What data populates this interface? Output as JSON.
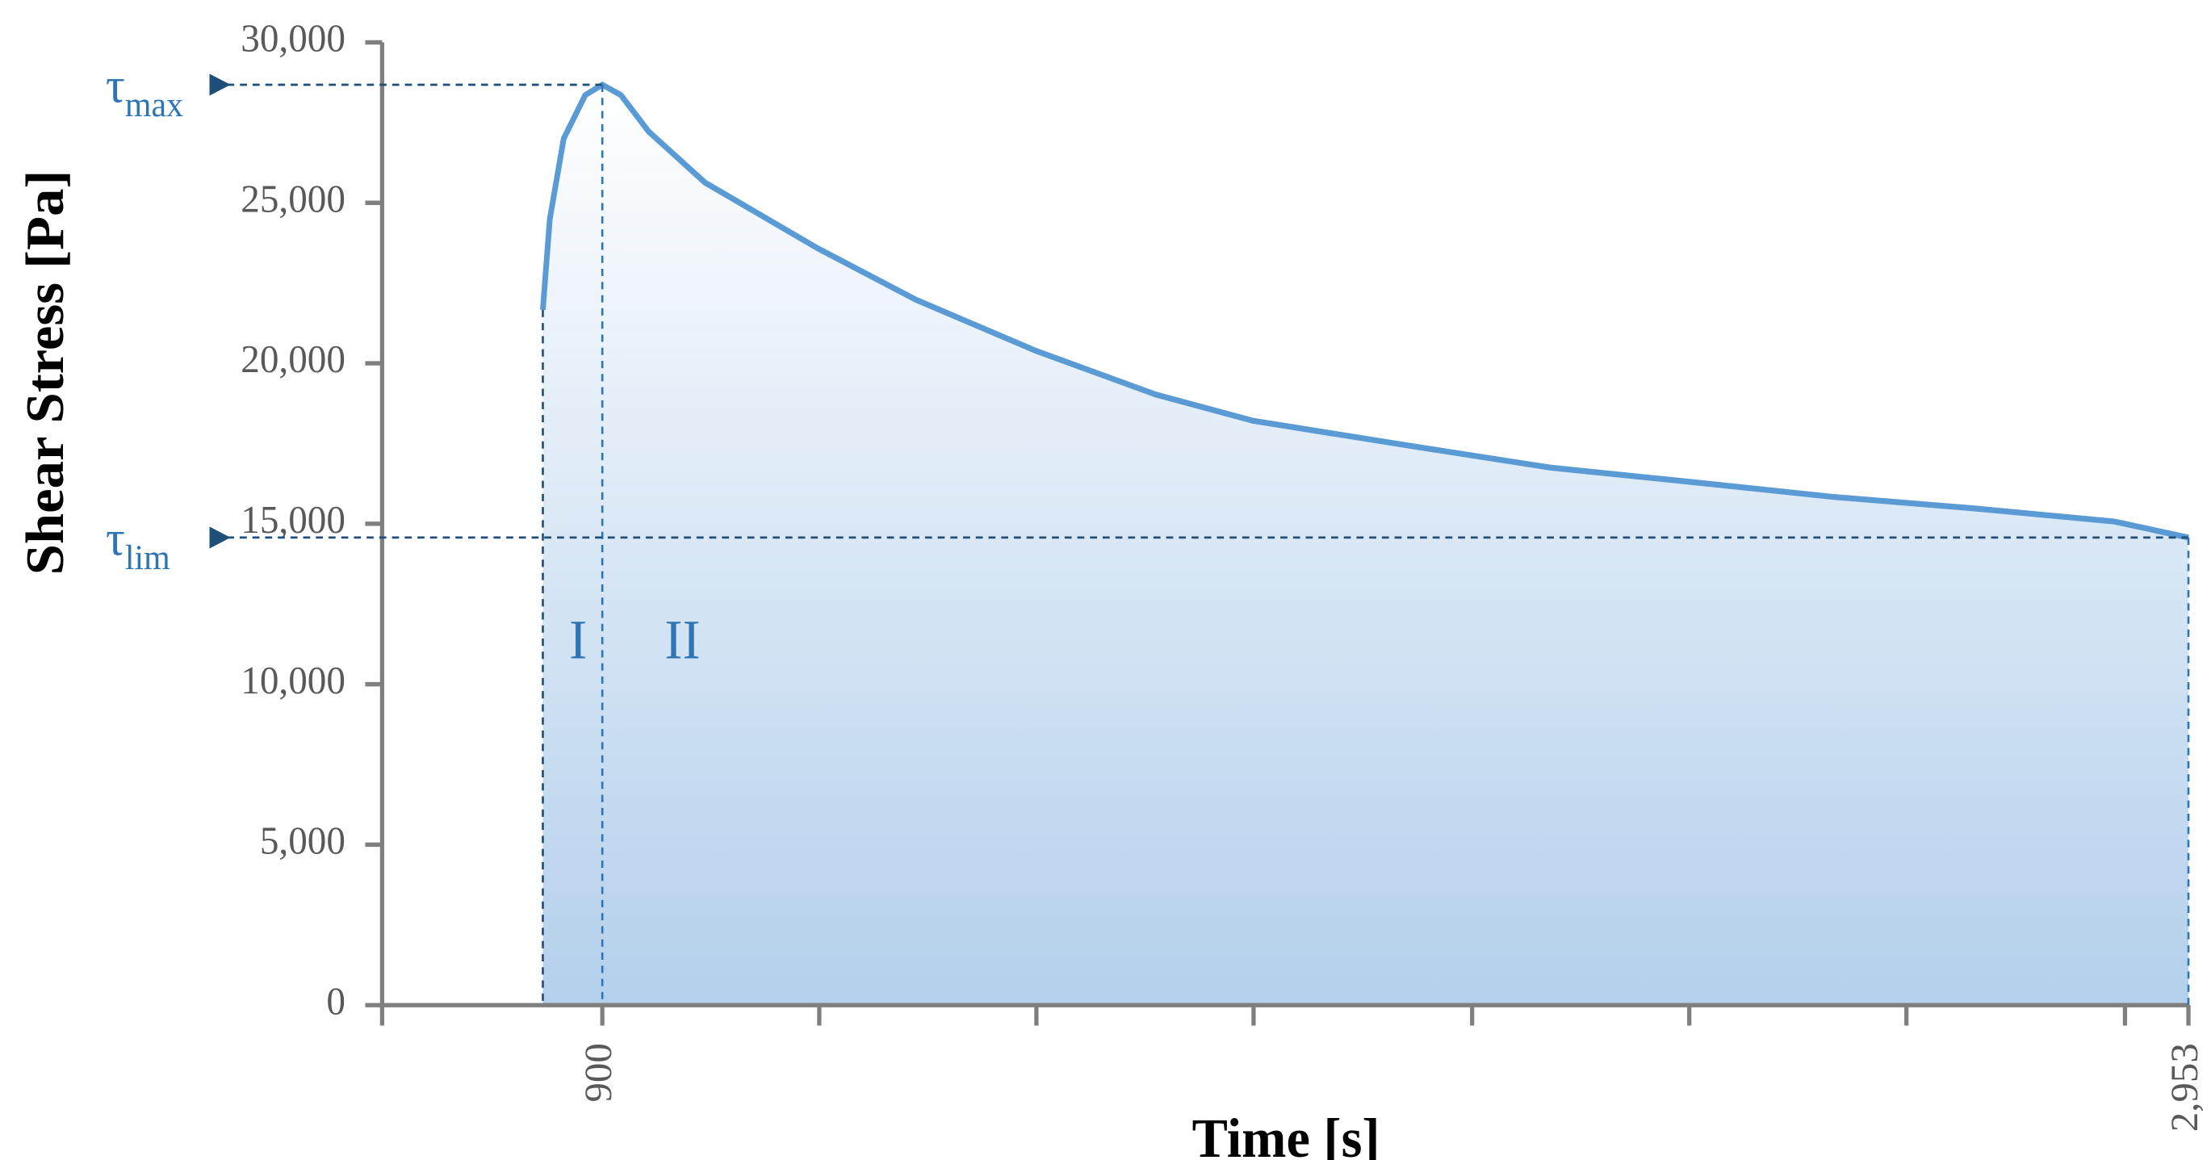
{
  "chart_data": {
    "type": "area",
    "xlabel": "Time [s]",
    "ylabel": "Shear Stress  [Pa]",
    "xlim": [
      615,
      2953
    ],
    "ylim": [
      0,
      30000
    ],
    "xticks": [
      900,
      {
        "value": 2953,
        "label": "2,953"
      }
    ],
    "yticks": [
      0,
      {
        "value": 5000,
        "label": "5,000"
      },
      {
        "value": 10000,
        "label": "10,000"
      },
      {
        "value": 15000,
        "label": "15,000"
      },
      {
        "value": 20000,
        "label": "20,000"
      },
      {
        "value": 25000,
        "label": "25,000"
      },
      {
        "value": 30000,
        "label": "30,000"
      }
    ],
    "grid": false,
    "series": [
      {
        "name": "Shear stress",
        "color": "#5b9bd5",
        "x": [
          823,
          832,
          850,
          878,
          900,
          924,
          960,
          1033,
          1179,
          1306,
          1461,
          1616,
          1742,
          1945,
          2127,
          2310,
          2492,
          2675,
          2857,
          2953
        ],
        "values": [
          21666,
          24490,
          27000,
          28360,
          28680,
          28360,
          27220,
          25630,
          23580,
          21980,
          20390,
          19030,
          18210,
          17430,
          16750,
          16300,
          15840,
          15480,
          15070,
          14570
        ]
      }
    ],
    "annotations": [
      {
        "symbol": "τ",
        "subscript": "max",
        "x": 900,
        "value": 28680
      },
      {
        "symbol": "τ",
        "subscript": "lim",
        "x": 2953,
        "value": 14570
      }
    ],
    "regions": [
      "I",
      "II"
    ]
  }
}
